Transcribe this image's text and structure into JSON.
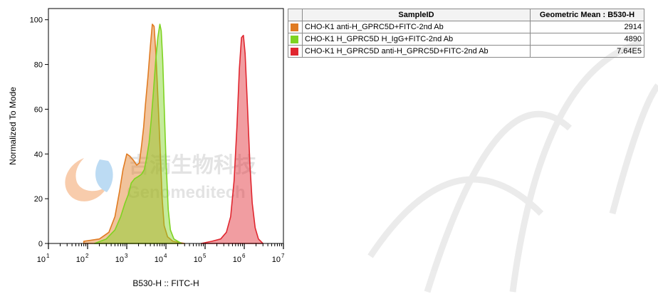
{
  "colors": {
    "orange": "#e07b22",
    "green": "#7ed321",
    "red": "#e0262f",
    "watermark": "#c9c9c9"
  },
  "chart_data": {
    "type": "area",
    "ylabel": "Normalized To Mode",
    "xlabel": "B530-H :: FITC-H",
    "y_ticks": [
      0,
      20,
      40,
      60,
      80,
      100
    ],
    "ylim": [
      0,
      105
    ],
    "x_scale": "log",
    "xlim": [
      10,
      10000000
    ],
    "x_tick_exponents": [
      1,
      2,
      3,
      4,
      5,
      6,
      7
    ],
    "x_tick_base": "10",
    "grid": false,
    "legend": {
      "placement": "right",
      "headers": [
        "SampleID",
        "Geometric Mean : B530-H"
      ],
      "rows": [
        {
          "color": "orange",
          "sample": "CHO-K1 anti-H_GPRC5D+FITC-2nd Ab",
          "value": "2914"
        },
        {
          "color": "green",
          "sample": "CHO-K1 H_GPRC5D H_IgG+FITC-2nd Ab",
          "value": "4890"
        },
        {
          "color": "red",
          "sample": "CHO-K1 H_GPRC5D anti-H_GPRC5D+FITC-2nd Ab",
          "value": "7.64E5"
        }
      ]
    },
    "series": [
      {
        "color": "orange",
        "points": [
          [
            80,
            1
          ],
          [
            200,
            2
          ],
          [
            350,
            5
          ],
          [
            500,
            12
          ],
          [
            650,
            23
          ],
          [
            800,
            33
          ],
          [
            1000,
            40
          ],
          [
            1200,
            39
          ],
          [
            1500,
            37
          ],
          [
            1800,
            35
          ],
          [
            2100,
            36
          ],
          [
            2400,
            44
          ],
          [
            2700,
            52
          ],
          [
            3000,
            62
          ],
          [
            3500,
            75
          ],
          [
            4000,
            88
          ],
          [
            4500,
            98
          ],
          [
            5000,
            97
          ],
          [
            5500,
            86
          ],
          [
            6000,
            72
          ],
          [
            7000,
            45
          ],
          [
            8000,
            20
          ],
          [
            9000,
            8
          ],
          [
            11000,
            3
          ],
          [
            15000,
            1
          ],
          [
            30000,
            0
          ]
        ]
      },
      {
        "color": "green",
        "points": [
          [
            150,
            0
          ],
          [
            300,
            2
          ],
          [
            500,
            6
          ],
          [
            700,
            12
          ],
          [
            900,
            18
          ],
          [
            1100,
            22
          ],
          [
            1300,
            27
          ],
          [
            1600,
            29
          ],
          [
            2000,
            30
          ],
          [
            2400,
            31
          ],
          [
            2800,
            33
          ],
          [
            3200,
            38
          ],
          [
            3700,
            45
          ],
          [
            4200,
            55
          ],
          [
            4800,
            68
          ],
          [
            5500,
            82
          ],
          [
            6200,
            92
          ],
          [
            7000,
            98
          ],
          [
            7600,
            95
          ],
          [
            8300,
            82
          ],
          [
            9000,
            62
          ],
          [
            10000,
            38
          ],
          [
            11500,
            15
          ],
          [
            13000,
            6
          ],
          [
            16000,
            2
          ],
          [
            25000,
            0
          ]
        ]
      },
      {
        "color": "red",
        "points": [
          [
            80000,
            0
          ],
          [
            150000,
            1
          ],
          [
            250000,
            2
          ],
          [
            350000,
            5
          ],
          [
            450000,
            12
          ],
          [
            550000,
            28
          ],
          [
            650000,
            52
          ],
          [
            750000,
            78
          ],
          [
            850000,
            92
          ],
          [
            950000,
            93
          ],
          [
            1050000,
            85
          ],
          [
            1200000,
            62
          ],
          [
            1400000,
            35
          ],
          [
            1600000,
            18
          ],
          [
            1900000,
            7
          ],
          [
            2300000,
            2
          ],
          [
            3000000,
            0
          ]
        ]
      }
    ]
  },
  "watermark": {
    "chinese": "吉满生物科技",
    "english": "Genomeditech"
  }
}
